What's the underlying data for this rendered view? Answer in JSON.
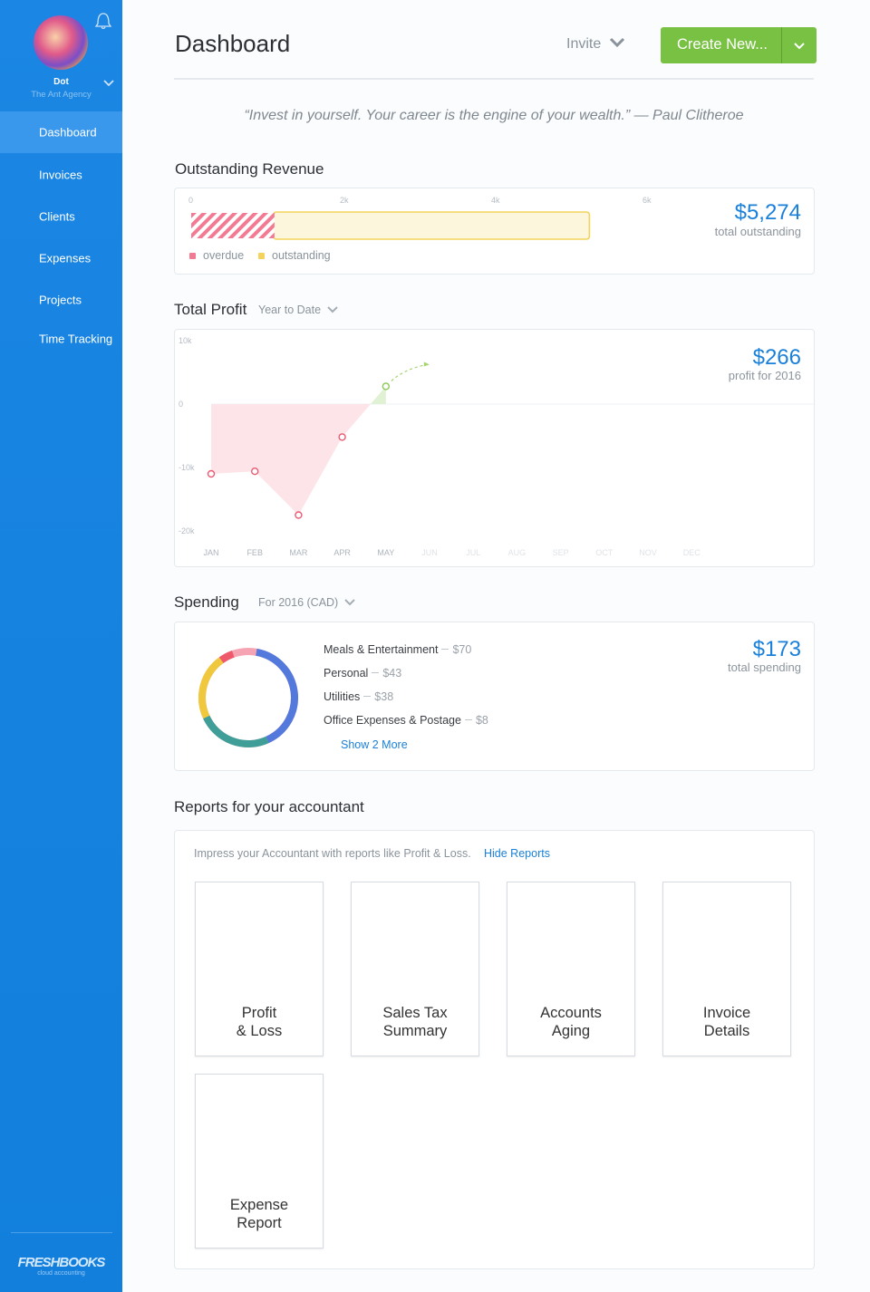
{
  "sidebar": {
    "user_name": "Dot",
    "company": "The Ant Agency",
    "nav": [
      "Dashboard",
      "Invoices",
      "Clients",
      "Expenses",
      "Projects",
      "Time Tracking"
    ],
    "logo": "FRESHBOOKS",
    "logo_sub": "cloud accounting"
  },
  "header": {
    "title": "Dashboard",
    "invite": "Invite",
    "create": "Create New..."
  },
  "quote": "“Invest in yourself. Your career is the engine of your wealth.” — Paul Clitheroe",
  "outstanding": {
    "title": "Outstanding Revenue",
    "type": "bar",
    "xlim": [
      0,
      8000
    ],
    "xticks": [
      0,
      {
        "value": 2000,
        "label": "2k"
      },
      {
        "value": 4000,
        "label": "4k"
      },
      {
        "value": 6000,
        "label": "6k"
      }
    ],
    "series": [
      {
        "name": "overdue",
        "color": "#f27a93",
        "values": [
          1100
        ]
      },
      {
        "name": "outstanding",
        "color": "#f3d35c",
        "values": [
          4174
        ]
      }
    ],
    "total": 5274,
    "total_label": "$5,274",
    "total_caption": "total outstanding"
  },
  "profit": {
    "title": "Total Profit",
    "filter": "Year to Date",
    "type": "area",
    "categories": [
      "JAN",
      "FEB",
      "MAR",
      "APR",
      "MAY",
      "JUN",
      "JUL",
      "AUG",
      "SEP",
      "OCT",
      "NOV",
      "DEC"
    ],
    "values": [
      -11000,
      -10600,
      -17500,
      -5200,
      2800,
      null,
      null,
      null,
      null,
      null,
      null,
      null
    ],
    "ylim": [
      -20000,
      10000
    ],
    "yticks": [
      {
        "value": 10000,
        "label": "10k"
      },
      0,
      {
        "value": -10000,
        "label": "-10k"
      },
      {
        "value": -20000,
        "label": "-20k"
      }
    ],
    "total": 266,
    "total_label": "$266",
    "total_caption": "profit for 2016"
  },
  "spending": {
    "title": "Spending",
    "filter": "For 2016 (CAD)",
    "type": "donut",
    "categories": [
      "Meals & Entertainment",
      "Personal",
      "Utilities",
      "Office Expenses & Postage"
    ],
    "values": [
      70,
      43,
      38,
      8
    ],
    "value_labels": [
      "$70",
      "$43",
      "$38",
      "$8"
    ],
    "colors": [
      "#5479dc",
      "#3f9f98",
      "#efc83d",
      "#ee5a6c"
    ],
    "total": 173,
    "total_label": "$173",
    "total_caption": "total spending",
    "show_more": "Show 2 More"
  },
  "reports": {
    "title": "Reports for your accountant",
    "intro": "Impress your Accountant with reports like Profit & Loss.",
    "hide": "Hide Reports",
    "cards": [
      [
        "Profit",
        "& Loss"
      ],
      [
        "Sales Tax",
        "Summary"
      ],
      [
        "Accounts",
        "Aging"
      ],
      [
        "Invoice",
        "Details"
      ],
      [
        "Expense",
        "Report"
      ]
    ]
  }
}
